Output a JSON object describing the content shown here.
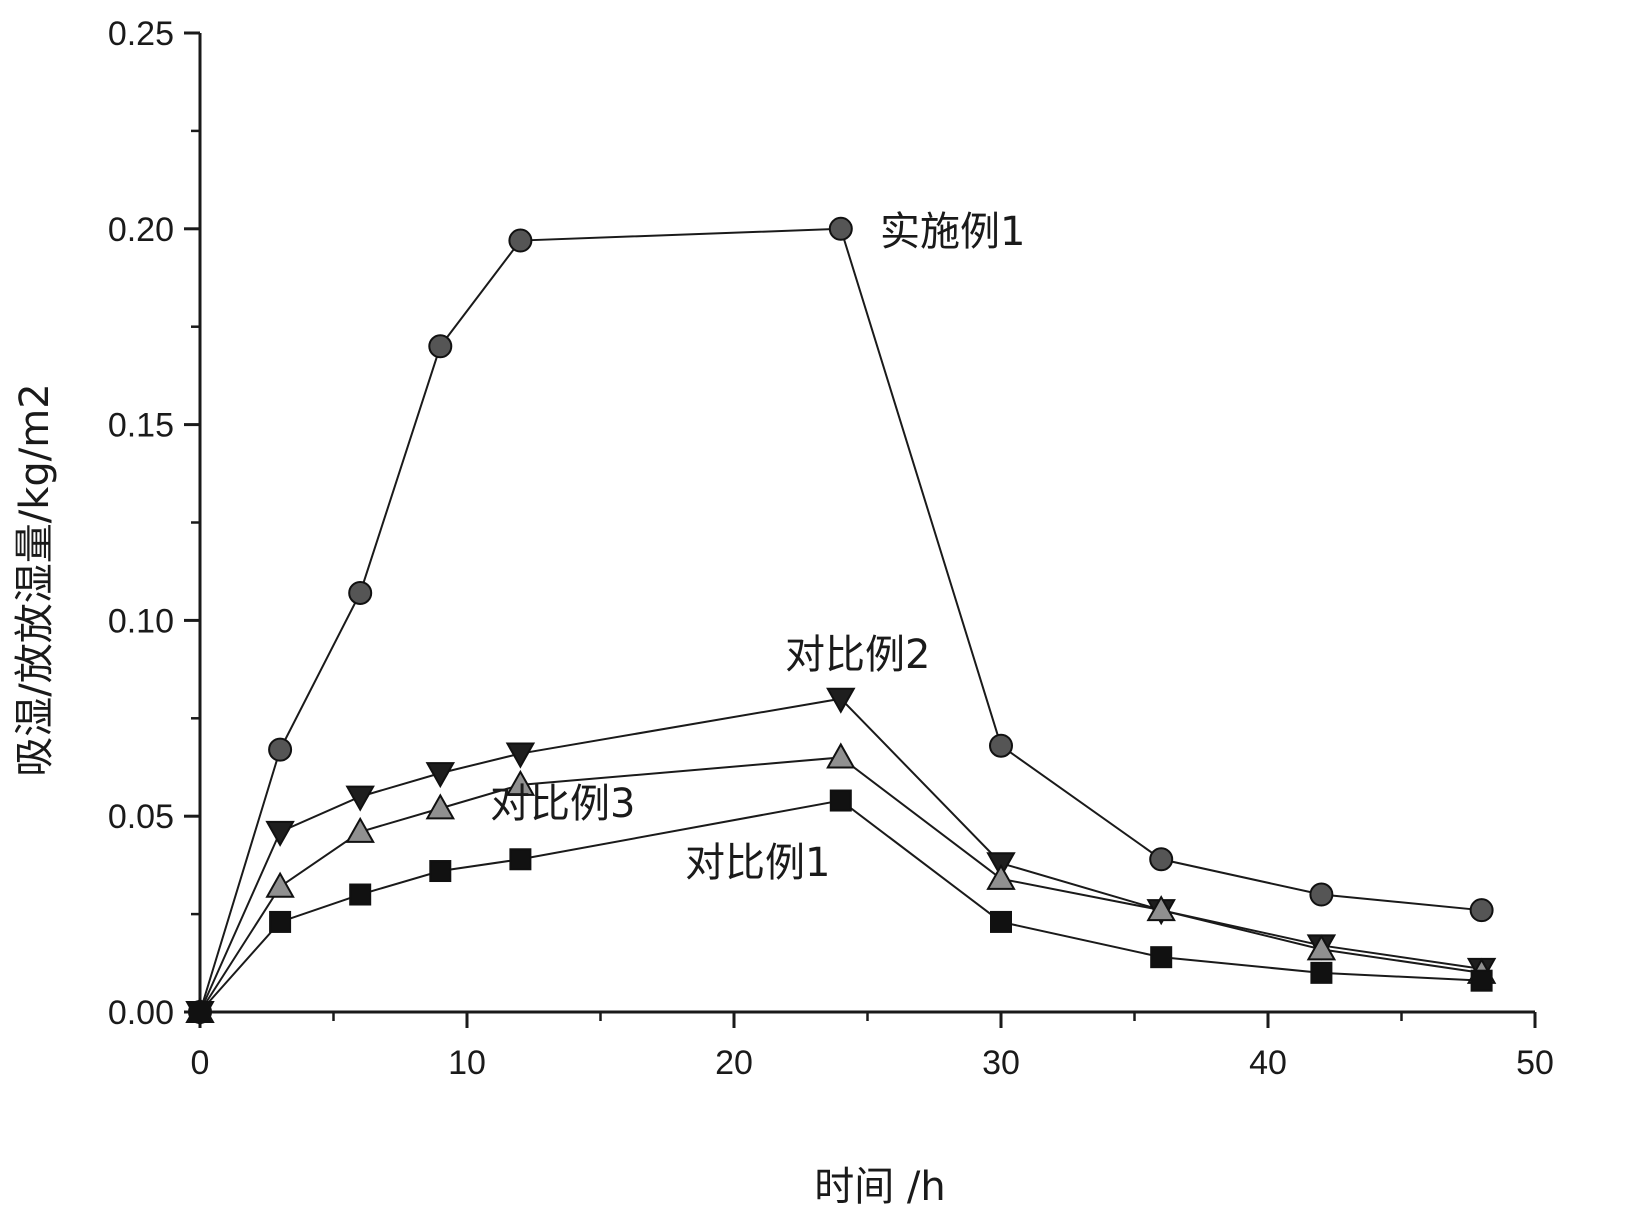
{
  "chart_data": {
    "type": "line",
    "xlabel": "时间 /h",
    "ylabel": "吸湿/放放湿量/kg/m2",
    "xlim": [
      0,
      50
    ],
    "ylim": [
      0,
      0.25
    ],
    "x_ticks": [
      "0",
      "10",
      "20",
      "30",
      "40",
      "50"
    ],
    "y_ticks": [
      "0.00",
      "0.05",
      "0.10",
      "0.15",
      "0.20",
      "0.25"
    ],
    "grid": false,
    "legend": "none",
    "x": [
      0,
      3,
      6,
      9,
      12,
      24,
      30,
      36,
      42,
      48
    ],
    "series": [
      {
        "name": "实施例1",
        "marker": "circle",
        "color": "#555555",
        "values": [
          0.0,
          0.067,
          0.107,
          0.17,
          0.197,
          0.2,
          0.068,
          0.039,
          0.03,
          0.026
        ]
      },
      {
        "name": "对比例2",
        "marker": "triangle-down",
        "color": "#1e1e1e",
        "values": [
          0.0,
          0.046,
          0.055,
          0.061,
          0.066,
          0.08,
          0.038,
          0.026,
          0.017,
          0.011
        ]
      },
      {
        "name": "对比例3",
        "marker": "triangle-up",
        "color": "#909090",
        "values": [
          0.0,
          0.032,
          0.046,
          0.052,
          0.058,
          0.065,
          0.034,
          0.026,
          0.016,
          0.01
        ]
      },
      {
        "name": "对比例1",
        "marker": "square",
        "color": "#111111",
        "values": [
          0.0,
          0.023,
          0.03,
          0.036,
          0.039,
          0.054,
          0.023,
          0.014,
          0.01,
          0.008
        ]
      }
    ]
  }
}
